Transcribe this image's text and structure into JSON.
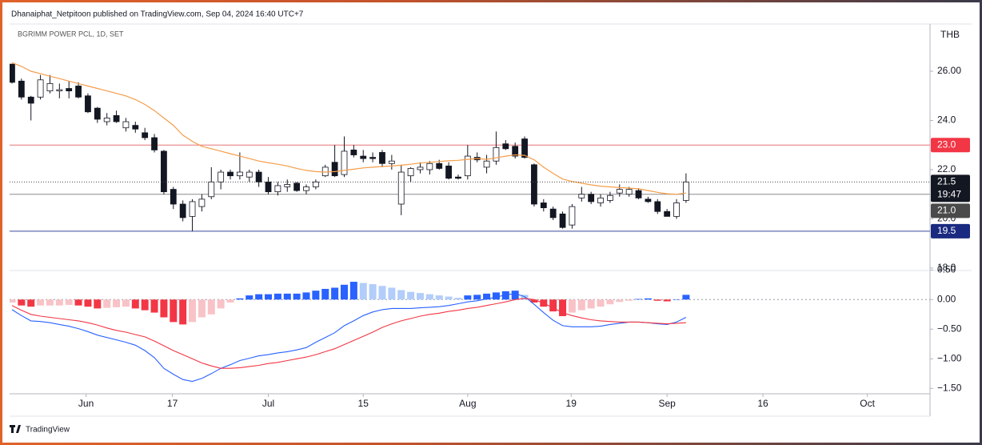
{
  "header": "Dhanaiphat_Netpitoon published on TradingView.com, Sep 04, 2024 16:40 UTC+7",
  "brand": "TradingView",
  "chart_data": [
    {
      "type": "candlestick",
      "title": "BGRIMM POWER PCL, 1D, SET",
      "unit": "THB",
      "up_color": "#ffffff",
      "down_color": "#131722",
      "outline_color": "#131722",
      "open": [
        26.29,
        25.6,
        24.95,
        24.95,
        25.2,
        25.2,
        25.3,
        25.4,
        25.0,
        24.5,
        23.95,
        24.2,
        23.7,
        23.8,
        23.5,
        23.3,
        22.75,
        21.2,
        20.6,
        20.1,
        20.5,
        20.9,
        21.5,
        21.9,
        21.75,
        21.7,
        21.9,
        21.5,
        21.1,
        21.3,
        21.45,
        21.15,
        21.3,
        21.75,
        22.3,
        21.8,
        22.8,
        22.55,
        22.5,
        22.7,
        22.25,
        20.6,
        21.75,
        22.0,
        22.0,
        22.25,
        22.15,
        21.7,
        21.75,
        22.5,
        22.1,
        22.35,
        23.05,
        22.95,
        23.25,
        22.2,
        20.65,
        20.4,
        20.2,
        19.75,
        20.85,
        21.0,
        20.65,
        20.75,
        21.05,
        21.0,
        21.15,
        20.8,
        20.7,
        20.3,
        20.1,
        20.75
      ],
      "high": [
        26.3,
        25.7,
        25.0,
        25.85,
        25.85,
        25.5,
        25.6,
        25.55,
        25.1,
        24.55,
        24.3,
        24.4,
        24.1,
        23.95,
        23.7,
        23.45,
        22.8,
        21.3,
        20.75,
        20.8,
        21.0,
        22.1,
        22.0,
        22.0,
        22.7,
        22.0,
        22.0,
        21.7,
        21.5,
        21.6,
        21.5,
        21.4,
        21.6,
        22.2,
        23.0,
        23.35,
        23.0,
        22.8,
        22.7,
        22.8,
        22.6,
        22.2,
        22.1,
        22.3,
        22.35,
        22.4,
        22.3,
        21.8,
        23.0,
        22.7,
        22.6,
        23.55,
        23.2,
        23.1,
        23.35,
        22.25,
        20.8,
        20.5,
        20.3,
        20.6,
        21.3,
        21.1,
        21.0,
        21.1,
        21.4,
        21.3,
        21.25,
        20.9,
        20.8,
        20.4,
        20.8,
        21.85
      ],
      "low": [
        25.5,
        24.85,
        24.0,
        24.85,
        25.1,
        24.9,
        24.9,
        24.9,
        24.3,
        23.9,
        23.8,
        23.9,
        23.55,
        23.5,
        23.2,
        22.7,
        21.0,
        20.4,
        19.9,
        19.5,
        20.3,
        20.8,
        21.2,
        21.6,
        21.6,
        21.5,
        21.3,
        21.0,
        20.95,
        21.1,
        21.1,
        21.0,
        21.2,
        21.7,
        21.7,
        21.7,
        22.5,
        22.3,
        22.3,
        22.1,
        22.0,
        20.15,
        21.5,
        21.85,
        21.8,
        22.0,
        21.6,
        21.6,
        21.6,
        22.3,
        21.85,
        22.2,
        22.8,
        22.45,
        22.45,
        20.5,
        20.3,
        19.95,
        19.6,
        19.6,
        20.7,
        20.6,
        20.5,
        20.65,
        20.9,
        20.9,
        20.8,
        20.65,
        20.2,
        20.1,
        20.0,
        20.65
      ],
      "close": [
        25.55,
        24.95,
        24.7,
        25.65,
        25.5,
        25.25,
        25.2,
        24.95,
        24.35,
        24.05,
        24.1,
        23.95,
        23.95,
        23.65,
        23.3,
        22.8,
        21.1,
        20.6,
        20.05,
        20.7,
        20.8,
        21.5,
        21.9,
        21.75,
        21.9,
        21.9,
        21.5,
        21.1,
        21.35,
        21.4,
        21.15,
        21.3,
        21.5,
        22.1,
        21.75,
        22.75,
        22.6,
        22.45,
        22.45,
        22.25,
        22.35,
        21.9,
        22.05,
        22.1,
        22.25,
        22.05,
        21.65,
        21.65,
        22.55,
        22.4,
        22.35,
        22.9,
        22.85,
        22.55,
        22.5,
        20.6,
        20.45,
        20.05,
        19.65,
        20.5,
        21.0,
        20.7,
        20.85,
        20.95,
        21.2,
        21.2,
        20.85,
        20.7,
        20.3,
        20.1,
        20.65,
        21.5
      ],
      "ma": {
        "color": "#f59d4a",
        "values": [
          26.35,
          26.2,
          26.0,
          25.9,
          25.8,
          25.7,
          25.6,
          25.5,
          25.4,
          25.3,
          25.2,
          25.1,
          25.0,
          24.85,
          24.65,
          24.4,
          24.1,
          23.8,
          23.4,
          23.15,
          22.95,
          22.85,
          22.75,
          22.65,
          22.55,
          22.45,
          22.35,
          22.28,
          22.22,
          22.15,
          22.05,
          21.97,
          21.92,
          21.9,
          21.92,
          21.97,
          22.02,
          22.07,
          22.1,
          22.13,
          22.15,
          22.18,
          22.22,
          22.27,
          22.3,
          22.33,
          22.36,
          22.38,
          22.42,
          22.45,
          22.42,
          22.48,
          22.55,
          22.6,
          22.58,
          22.4,
          22.1,
          21.85,
          21.62,
          21.52,
          21.45,
          21.38,
          21.33,
          21.3,
          21.27,
          21.25,
          21.22,
          21.15,
          21.08,
          21.02,
          21.0,
          21.05
        ]
      },
      "hlines": [
        {
          "value": 23,
          "label": "23.0",
          "color": "#f23645",
          "line_color": "#e57373"
        },
        {
          "value": 21,
          "label": "21.0",
          "color": "#4a4a4a",
          "line_color": "#8a8a8a"
        },
        {
          "value": 19.5,
          "label": "19.5",
          "color": "#1a2a80",
          "line_color": "#3a4a9a"
        }
      ],
      "countdown": "19:47",
      "ylim": [
        17.9,
        27.92
      ],
      "yticks": [
        {
          "value": 26,
          "label": "26.00"
        },
        {
          "value": 24,
          "label": "24.0"
        },
        {
          "value": 22,
          "label": "22.0"
        },
        {
          "value": 20,
          "label": "20.0"
        },
        {
          "value": 18,
          "label": "18.0"
        }
      ],
      "xlim": [
        -0.25,
        96.7
      ],
      "xticks": [
        {
          "value": 7.8,
          "label": "Jun"
        },
        {
          "value": 16.9,
          "label": "17"
        },
        {
          "value": 27.0,
          "label": "Jul"
        },
        {
          "value": 37.0,
          "label": "15"
        },
        {
          "value": 48.0,
          "label": "Aug"
        },
        {
          "value": 58.9,
          "label": "19"
        },
        {
          "value": 69.0,
          "label": "Sep"
        },
        {
          "value": 79.1,
          "label": "16"
        },
        {
          "value": 90.1,
          "label": "Oct"
        }
      ]
    },
    {
      "type": "macd",
      "histogram": [
        -0.05,
        -0.1,
        -0.12,
        -0.1,
        -0.1,
        -0.1,
        -0.09,
        -0.1,
        -0.12,
        -0.15,
        -0.14,
        -0.13,
        -0.12,
        -0.15,
        -0.18,
        -0.22,
        -0.3,
        -0.38,
        -0.42,
        -0.38,
        -0.3,
        -0.25,
        -0.15,
        -0.05,
        0.02,
        0.07,
        0.09,
        0.09,
        0.1,
        0.1,
        0.1,
        0.12,
        0.15,
        0.18,
        0.2,
        0.25,
        0.3,
        0.28,
        0.26,
        0.23,
        0.2,
        0.16,
        0.13,
        0.11,
        0.09,
        0.07,
        0.05,
        0.03,
        0.07,
        0.08,
        0.1,
        0.12,
        0.14,
        0.15,
        0.08,
        -0.05,
        -0.12,
        -0.2,
        -0.28,
        -0.22,
        -0.18,
        -0.15,
        -0.12,
        -0.08,
        -0.04,
        -0.02,
        0.01,
        0.02,
        -0.02,
        -0.03,
        0.0,
        0.08
      ],
      "histogram_colors": {
        "rising_above": "#2962ff",
        "falling_above": "#b2cdf9",
        "falling_below": "#f23645",
        "rising_below": "#f8c3c7"
      },
      "macd": {
        "color": "#2962ff",
        "values": [
          -0.17,
          -0.27,
          -0.36,
          -0.37,
          -0.39,
          -0.42,
          -0.45,
          -0.49,
          -0.54,
          -0.6,
          -0.64,
          -0.68,
          -0.72,
          -0.77,
          -0.86,
          -0.98,
          -1.16,
          -1.26,
          -1.35,
          -1.38,
          -1.33,
          -1.25,
          -1.16,
          -1.1,
          -1.03,
          -0.99,
          -0.95,
          -0.93,
          -0.9,
          -0.88,
          -0.85,
          -0.81,
          -0.72,
          -0.64,
          -0.56,
          -0.44,
          -0.36,
          -0.27,
          -0.21,
          -0.17,
          -0.15,
          -0.15,
          -0.15,
          -0.14,
          -0.13,
          -0.12,
          -0.1,
          -0.07,
          -0.04,
          -0.02,
          0.01,
          0.04,
          0.08,
          0.1,
          0.05,
          -0.08,
          -0.22,
          -0.35,
          -0.44,
          -0.46,
          -0.46,
          -0.46,
          -0.45,
          -0.42,
          -0.4,
          -0.38,
          -0.38,
          -0.39,
          -0.41,
          -0.42,
          -0.38,
          -0.3
        ]
      },
      "signal": {
        "color": "#f23645",
        "values": [
          -0.1,
          -0.18,
          -0.25,
          -0.28,
          -0.3,
          -0.32,
          -0.34,
          -0.36,
          -0.39,
          -0.43,
          -0.48,
          -0.52,
          -0.55,
          -0.59,
          -0.63,
          -0.7,
          -0.78,
          -0.86,
          -0.93,
          -1.0,
          -1.07,
          -1.12,
          -1.16,
          -1.16,
          -1.15,
          -1.13,
          -1.11,
          -1.08,
          -1.06,
          -1.03,
          -1.0,
          -0.97,
          -0.93,
          -0.88,
          -0.83,
          -0.76,
          -0.69,
          -0.62,
          -0.55,
          -0.47,
          -0.41,
          -0.36,
          -0.32,
          -0.28,
          -0.25,
          -0.23,
          -0.2,
          -0.18,
          -0.15,
          -0.13,
          -0.1,
          -0.07,
          -0.04,
          0.0,
          0.02,
          0.0,
          -0.06,
          -0.14,
          -0.22,
          -0.27,
          -0.31,
          -0.34,
          -0.36,
          -0.37,
          -0.38,
          -0.38,
          -0.38,
          -0.39,
          -0.4,
          -0.41,
          -0.4,
          -0.39
        ]
      },
      "ylim": [
        -1.59,
        0.49
      ],
      "yticks": [
        {
          "value": 0.5,
          "label": "0.50"
        },
        {
          "value": 0,
          "label": "0.00"
        },
        {
          "value": -0.5,
          "label": "−0.50"
        },
        {
          "value": -1,
          "label": "−1.00"
        },
        {
          "value": -1.5,
          "label": "−1.50"
        }
      ]
    }
  ]
}
